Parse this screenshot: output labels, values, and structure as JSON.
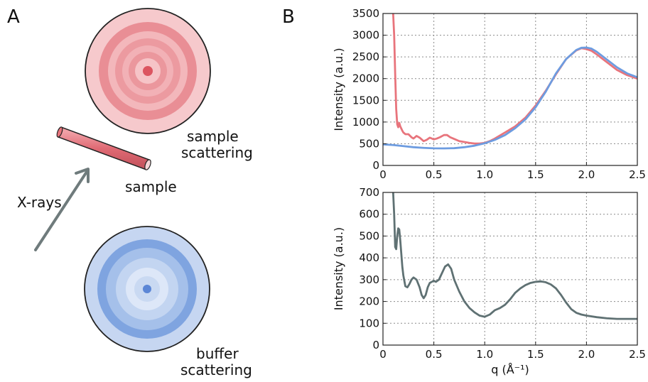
{
  "panels": {
    "a": {
      "letter": "A",
      "labels": {
        "sample_scattering_line1": "sample",
        "sample_scattering_line2": "scattering",
        "sample": "sample",
        "xrays": "X-rays",
        "buffer_scattering_line1": "buffer",
        "buffer_scattering_line2": "scattering"
      }
    },
    "b": {
      "letter": "B"
    }
  },
  "colors": {
    "sample_red": "#e8747c",
    "buffer_blue": "#6d9ce0",
    "difference_gray": "#5f7173",
    "arrow_gray": "#6f7b7c"
  },
  "chart_data": [
    {
      "type": "line",
      "title": "",
      "xlabel": "",
      "ylabel": "Intensity (a.u.)",
      "xlim": [
        0,
        2.5
      ],
      "ylim": [
        0,
        3500
      ],
      "xticks": [
        "0",
        "0.5",
        "1.0",
        "1.5",
        "2.0",
        "2.5"
      ],
      "yticks": [
        "0",
        "500",
        "1000",
        "1500",
        "2000",
        "2500",
        "3000",
        "3500"
      ],
      "grid": true,
      "series": [
        {
          "color": "#e8747c",
          "x": [
            0.1,
            0.11,
            0.12,
            0.13,
            0.14,
            0.15,
            0.16,
            0.17,
            0.18,
            0.19,
            0.2,
            0.22,
            0.25,
            0.28,
            0.3,
            0.33,
            0.36,
            0.4,
            0.43,
            0.46,
            0.5,
            0.53,
            0.56,
            0.6,
            0.63,
            0.66,
            0.7,
            0.75,
            0.8,
            0.85,
            0.9,
            0.95,
            1.0,
            1.05,
            1.1,
            1.2,
            1.3,
            1.4,
            1.5,
            1.6,
            1.7,
            1.8,
            1.9,
            1.95,
            2.0,
            2.05,
            2.1,
            2.2,
            2.3,
            2.4,
            2.5
          ],
          "y": [
            3500,
            3000,
            2100,
            1300,
            950,
            880,
            980,
            900,
            850,
            800,
            760,
            720,
            720,
            650,
            620,
            680,
            640,
            560,
            590,
            640,
            600,
            620,
            650,
            700,
            700,
            650,
            610,
            560,
            540,
            520,
            505,
            505,
            520,
            560,
            620,
            760,
            900,
            1100,
            1380,
            1720,
            2100,
            2450,
            2650,
            2700,
            2680,
            2640,
            2560,
            2380,
            2200,
            2080,
            2000
          ]
        },
        {
          "color": "#6d9ce0",
          "x": [
            0.0,
            0.1,
            0.2,
            0.3,
            0.4,
            0.5,
            0.6,
            0.7,
            0.8,
            0.9,
            1.0,
            1.1,
            1.2,
            1.3,
            1.4,
            1.5,
            1.6,
            1.7,
            1.8,
            1.9,
            1.95,
            2.0,
            2.05,
            2.1,
            2.2,
            2.3,
            2.4,
            2.5
          ],
          "y": [
            485,
            470,
            445,
            420,
            405,
            395,
            392,
            398,
            420,
            455,
            510,
            590,
            700,
            860,
            1060,
            1340,
            1700,
            2120,
            2450,
            2660,
            2710,
            2715,
            2690,
            2620,
            2440,
            2260,
            2120,
            2030
          ]
        }
      ]
    },
    {
      "type": "line",
      "title": "",
      "xlabel": "q (Å⁻¹)",
      "ylabel": "Intensity (a.u.)",
      "xlim": [
        0,
        2.5
      ],
      "ylim": [
        0,
        700
      ],
      "xticks": [
        "0",
        "0.5",
        "1.0",
        "1.5",
        "2.0",
        "2.5"
      ],
      "yticks": [
        "0",
        "100",
        "200",
        "300",
        "400",
        "500",
        "600",
        "700"
      ],
      "grid": true,
      "series": [
        {
          "color": "#5f7173",
          "x": [
            0.1,
            0.11,
            0.12,
            0.13,
            0.14,
            0.15,
            0.16,
            0.17,
            0.18,
            0.19,
            0.2,
            0.22,
            0.24,
            0.26,
            0.28,
            0.3,
            0.33,
            0.36,
            0.38,
            0.4,
            0.42,
            0.44,
            0.46,
            0.48,
            0.5,
            0.52,
            0.55,
            0.58,
            0.61,
            0.64,
            0.67,
            0.7,
            0.75,
            0.8,
            0.85,
            0.9,
            0.95,
            1.0,
            1.05,
            1.1,
            1.15,
            1.2,
            1.25,
            1.3,
            1.35,
            1.4,
            1.45,
            1.5,
            1.55,
            1.6,
            1.65,
            1.7,
            1.75,
            1.8,
            1.85,
            1.9,
            1.95,
            2.0,
            2.1,
            2.2,
            2.3,
            2.4,
            2.5
          ],
          "y": [
            700,
            600,
            450,
            440,
            500,
            535,
            530,
            480,
            420,
            360,
            320,
            270,
            265,
            280,
            300,
            310,
            300,
            265,
            230,
            215,
            230,
            265,
            285,
            290,
            295,
            290,
            300,
            330,
            360,
            370,
            350,
            300,
            245,
            200,
            170,
            150,
            135,
            130,
            140,
            160,
            170,
            185,
            210,
            240,
            260,
            275,
            285,
            290,
            292,
            288,
            278,
            260,
            230,
            195,
            165,
            148,
            140,
            135,
            128,
            123,
            120,
            120,
            120
          ]
        }
      ]
    }
  ]
}
